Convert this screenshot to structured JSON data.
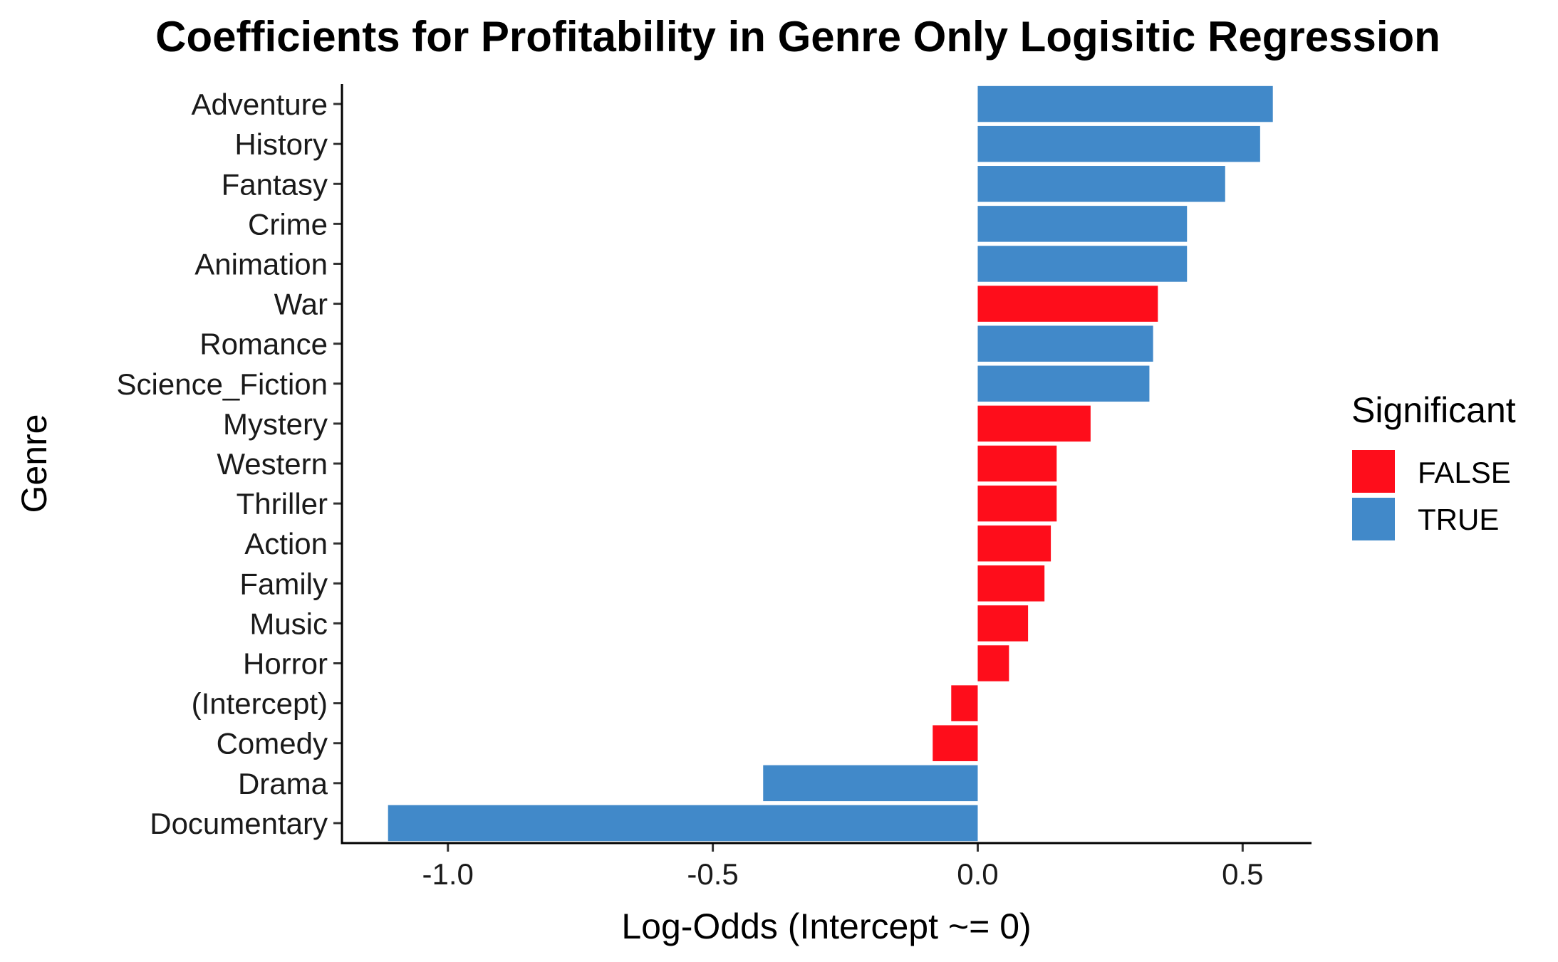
{
  "chart_data": {
    "type": "bar",
    "orientation": "horizontal",
    "title": "Coefficients for Profitability in Genre Only Logisitic Regression",
    "xlabel": "Log-Odds (Intercept ~= 0)",
    "ylabel": "Genre",
    "xlim": [
      -1.2,
      0.63
    ],
    "xticks": [
      -1.0,
      -0.5,
      0.0,
      0.5
    ],
    "xtick_labels": [
      "-1.0",
      "-0.5",
      "0.0",
      "0.5"
    ],
    "grid": false,
    "legend": {
      "title": "Significant",
      "position": "right",
      "entries": [
        {
          "label": "FALSE",
          "color": "#fe0d1b"
        },
        {
          "label": "TRUE",
          "color": "#4189c9"
        }
      ]
    },
    "categories": [
      "Adventure",
      "History",
      "Fantasy",
      "Crime",
      "Animation",
      "War",
      "Romance",
      "Science_Fiction",
      "Mystery",
      "Western",
      "Thriller",
      "Action",
      "Family",
      "Music",
      "Horror",
      "(Intercept)",
      "Comedy",
      "Drama",
      "Documentary"
    ],
    "values": [
      0.557,
      0.533,
      0.467,
      0.395,
      0.395,
      0.34,
      0.331,
      0.324,
      0.213,
      0.149,
      0.149,
      0.138,
      0.126,
      0.095,
      0.059,
      -0.05,
      -0.085,
      -0.405,
      -1.113
    ],
    "significant": [
      true,
      true,
      true,
      true,
      true,
      false,
      true,
      true,
      false,
      false,
      false,
      false,
      false,
      false,
      false,
      false,
      false,
      true,
      true
    ]
  }
}
